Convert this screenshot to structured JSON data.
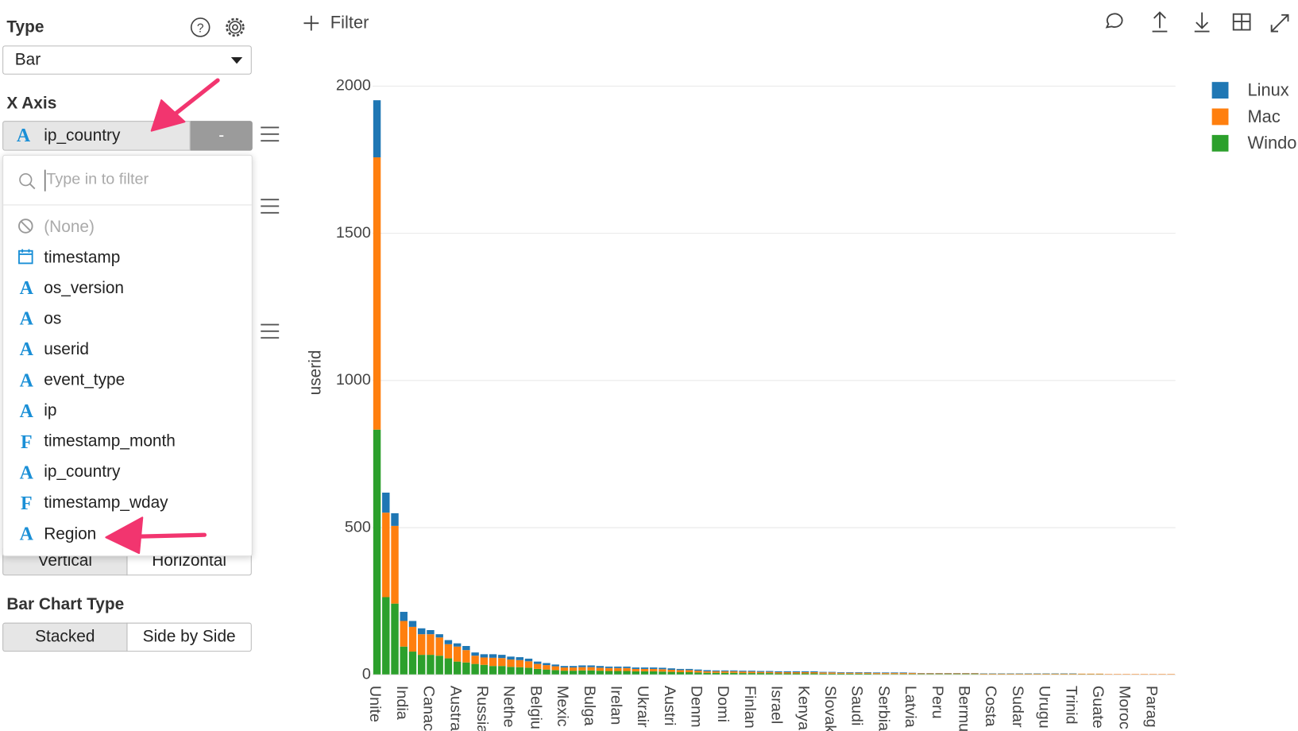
{
  "sidebar": {
    "type_label": "Type",
    "type_value": "Bar",
    "x_axis_label": "X Axis",
    "x_axis_value": "ip_country",
    "remove_button": "-",
    "search_placeholder": "Type in to filter",
    "options": [
      {
        "label": "(None)"
      },
      {
        "label": "timestamp"
      },
      {
        "glyph": "A",
        "label": "os_version"
      },
      {
        "glyph": "A",
        "label": "os"
      },
      {
        "glyph": "A",
        "label": "userid"
      },
      {
        "glyph": "A",
        "label": "event_type"
      },
      {
        "glyph": "A",
        "label": "ip"
      },
      {
        "glyph": "F",
        "label": "timestamp_month"
      },
      {
        "glyph": "A",
        "label": "ip_country"
      },
      {
        "glyph": "F",
        "label": "timestamp_wday"
      },
      {
        "glyph": "A",
        "label": "Region"
      }
    ],
    "orientation": [
      "Vertical",
      "Horizontal"
    ],
    "bar_chart_type_label": "Bar Chart Type",
    "bar_chart_types": [
      "Stacked",
      "Side by Side"
    ]
  },
  "toolbar": {
    "filter": "Filter"
  },
  "chart_data": {
    "type": "bar",
    "stacked": true,
    "y_label": "userid",
    "categories": [
      "Unite",
      null,
      null,
      "India",
      null,
      null,
      "Canac",
      null,
      null,
      "Austra",
      null,
      null,
      "Russia",
      null,
      null,
      "Nethe",
      null,
      null,
      "Belgiu",
      null,
      null,
      "Mexic",
      null,
      null,
      "Bulga",
      null,
      null,
      "Irelan",
      null,
      null,
      "Ukrair",
      null,
      null,
      "Austri",
      null,
      null,
      "Denm",
      null,
      null,
      "Domi",
      null,
      null,
      "Finlan",
      null,
      null,
      "Israel",
      null,
      null,
      "Kenya",
      null,
      null,
      "Slovak",
      null,
      null,
      "Saudi",
      null,
      null,
      "Serbia",
      null,
      null,
      "Latvia",
      null,
      null,
      "Peru",
      null,
      null,
      "Bermu",
      null,
      null,
      "Costa",
      null,
      null,
      "Sudar",
      null,
      null,
      "Urugu",
      null,
      null,
      "Trinid",
      null,
      null,
      "Guate",
      null,
      null,
      "Moroc",
      null,
      null,
      "Parag",
      null,
      null
    ],
    "series": [
      {
        "name": "Linux",
        "color": "#1f77b4",
        "values": [
          194,
          68,
          43,
          31,
          20,
          20,
          14,
          11,
          14,
          11,
          14,
          11,
          11,
          12,
          11,
          10,
          10,
          9,
          8,
          7,
          6,
          5,
          5,
          6,
          6,
          6,
          5,
          5,
          5,
          5,
          5,
          5,
          5,
          5,
          4,
          4,
          4,
          4,
          3,
          3,
          3,
          3,
          3,
          3,
          3,
          3,
          3,
          3,
          3,
          3,
          2,
          2,
          2,
          2,
          2,
          2,
          2,
          2,
          2,
          2,
          1,
          1,
          1,
          1,
          1,
          1,
          1,
          1,
          1,
          1,
          1,
          1,
          1,
          1,
          1,
          1,
          1,
          1,
          1,
          0,
          0,
          0,
          0,
          0,
          0,
          0,
          0,
          0,
          0,
          0
        ]
      },
      {
        "name": "Mac",
        "color": "#ff7f0e",
        "values": [
          925,
          287,
          264,
          87,
          84,
          70,
          70,
          62,
          48,
          51,
          42,
          28,
          25,
          28,
          27,
          25,
          24,
          22,
          17,
          15,
          13,
          11,
          11,
          11,
          11,
          10,
          10,
          10,
          10,
          8,
          8,
          8,
          8,
          7,
          7,
          7,
          6,
          5,
          5,
          5,
          5,
          5,
          5,
          4,
          4,
          4,
          4,
          4,
          4,
          4,
          4,
          4,
          3,
          3,
          3,
          3,
          3,
          3,
          3,
          3,
          3,
          2,
          2,
          2,
          2,
          2,
          2,
          2,
          2,
          2,
          2,
          2,
          2,
          2,
          2,
          2,
          2,
          2,
          2,
          2,
          2,
          2,
          2,
          2,
          2,
          2,
          2,
          2,
          2,
          2
        ]
      },
      {
        "name": "Windo",
        "color": "#2ca02c",
        "values": [
          833,
          264,
          242,
          96,
          79,
          68,
          68,
          65,
          56,
          45,
          42,
          37,
          34,
          30,
          30,
          27,
          26,
          24,
          20,
          18,
          16,
          14,
          14,
          15,
          15,
          14,
          13,
          13,
          13,
          12,
          12,
          12,
          11,
          10,
          9,
          9,
          8,
          7,
          7,
          7,
          7,
          6,
          6,
          6,
          6,
          5,
          5,
          5,
          5,
          5,
          4,
          4,
          4,
          4,
          4,
          4,
          3,
          3,
          3,
          3,
          3,
          3,
          3,
          3,
          3,
          3,
          3,
          3,
          2,
          2,
          2,
          2,
          2,
          2,
          2,
          2,
          2,
          2,
          2,
          2,
          2,
          2,
          1,
          1,
          1,
          1,
          1,
          1,
          1,
          1
        ]
      }
    ],
    "ylim": [
      0,
      2000
    ],
    "yticks": [
      0,
      500,
      1000,
      1500,
      2000
    ],
    "grid": true,
    "legend": "right"
  }
}
